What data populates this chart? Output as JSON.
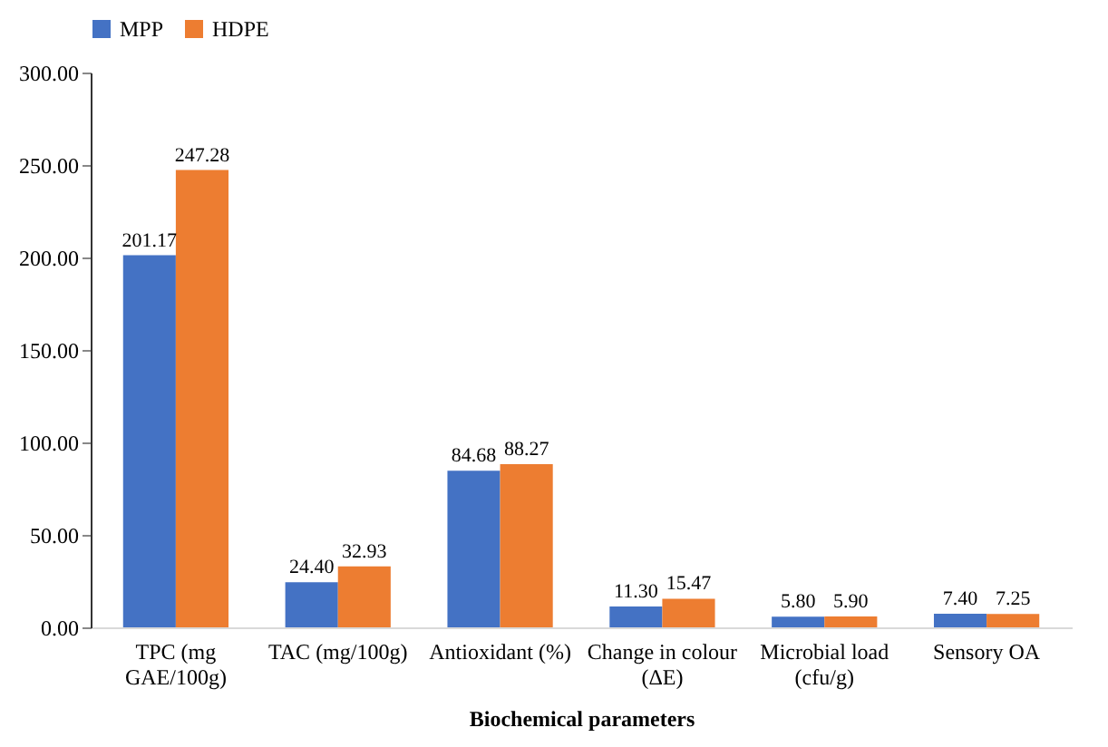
{
  "chart_data": {
    "type": "bar",
    "xlabel": "Biochemical parameters",
    "categories": [
      "TPC (mg\nGAE/100g)",
      "TAC (mg/100g)",
      "Antioxidant (%)",
      "Change in colour\n(ΔE)",
      "Microbial load\n(cfu/g)",
      "Sensory OA"
    ],
    "series": [
      {
        "name": "MPP",
        "color": "#4472c4",
        "values": [
          201.17,
          24.4,
          84.68,
          11.3,
          5.8,
          7.4
        ],
        "value_labels": [
          "201.17",
          "24.40",
          "84.68",
          "11.30",
          "5.80",
          "7.40"
        ]
      },
      {
        "name": "HDPE",
        "color": "#ed7d31",
        "values": [
          247.28,
          32.93,
          88.27,
          15.47,
          5.9,
          7.25
        ],
        "value_labels": [
          "247.28",
          "32.93",
          "88.27",
          "15.47",
          "5.90",
          "7.25"
        ]
      }
    ],
    "ylim": [
      0,
      300
    ],
    "yticks": [
      {
        "value": 0,
        "label": "0.00"
      },
      {
        "value": 50,
        "label": "50.00"
      },
      {
        "value": 100,
        "label": "100.00"
      },
      {
        "value": 150,
        "label": "150.00"
      },
      {
        "value": 200,
        "label": "200.00"
      },
      {
        "value": 250,
        "label": "250.00"
      },
      {
        "value": 300,
        "label": "300.00"
      }
    ],
    "grid": false,
    "legend": "top"
  }
}
